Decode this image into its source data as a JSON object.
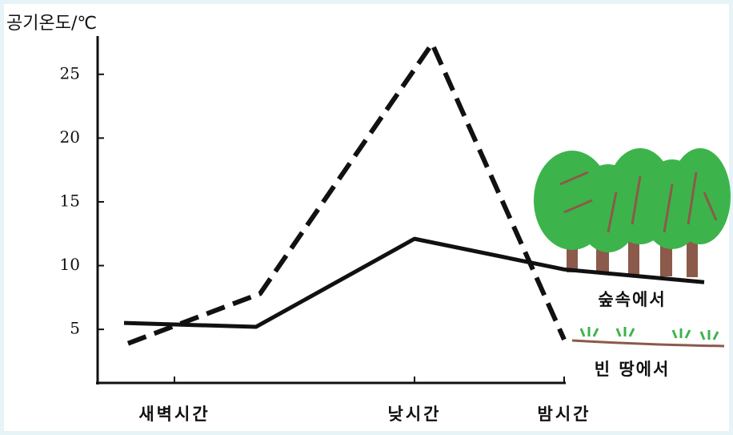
{
  "chart_data": {
    "type": "line",
    "title": "공기온도/℃",
    "ylim": [
      0.8,
      28
    ],
    "yticks": [
      5,
      10,
      15,
      20,
      25
    ],
    "xlim": [
      0,
      583
    ],
    "xticks": [
      {
        "value": 96,
        "label": "새벽시간"
      },
      {
        "value": 396,
        "label": "낮시간"
      },
      {
        "value": 583,
        "label": "밤시간"
      }
    ],
    "series": [
      {
        "name": "숲속에서",
        "color": "#111111",
        "style": "solid",
        "x": [
          33,
          198,
          396,
          583,
          758
        ],
        "values": [
          5.5,
          5.2,
          12.1,
          9.7,
          8.7
        ]
      },
      {
        "name": "빈 땅에서",
        "color": "#111111",
        "style": "dashed",
        "x": [
          38,
          203,
          418,
          583
        ],
        "values": [
          3.9,
          7.8,
          27.4,
          4.2
        ]
      }
    ]
  }
}
